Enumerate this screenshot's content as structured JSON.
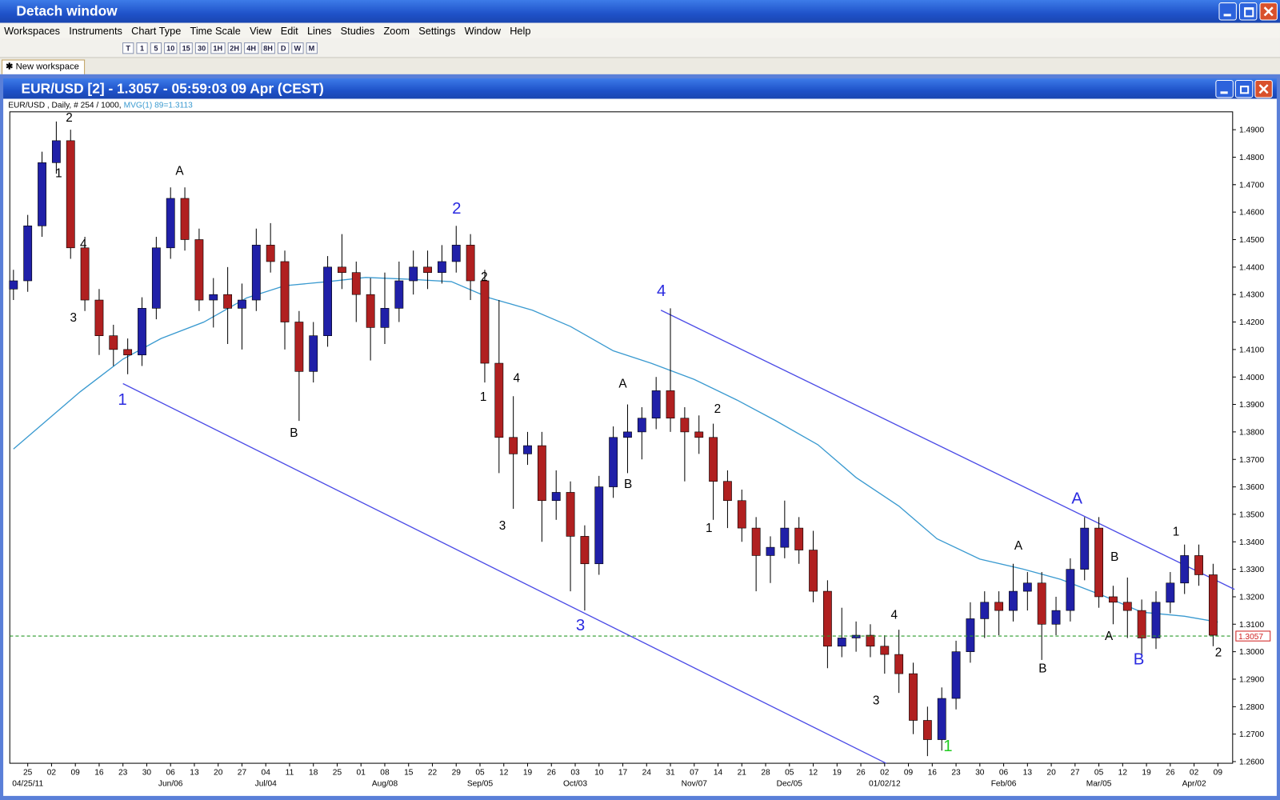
{
  "window": {
    "title": "Detach window"
  },
  "menu": [
    "Workspaces",
    "Instruments",
    "Chart Type",
    "Time Scale",
    "View",
    "Edit",
    "Lines",
    "Studies",
    "Zoom",
    "Settings",
    "Window",
    "Help"
  ],
  "toolbar": [
    "T",
    "1",
    "5",
    "10",
    "15",
    "30",
    "1H",
    "2H",
    "4H",
    "8H",
    "D",
    "W",
    "M"
  ],
  "tab": "New workspace",
  "chart_window": {
    "title": "EUR/USD [2] - 1.3057 - 05:59:03  09 Apr (CEST)"
  },
  "chart_data": {
    "type": "candlestick",
    "info": "EUR/USD , Daily, # 254 / 1000,",
    "up_color": "#2020a8",
    "down_color": "#b02020",
    "xlim": [
      -3.77,
      253.1
    ],
    "ylim": [
      1.2594,
      1.4965
    ],
    "yticks": [
      {
        "value": 1.26,
        "label": "1.2600"
      },
      {
        "value": 1.27,
        "label": "1.2700"
      },
      {
        "value": 1.28,
        "label": "1.2800"
      },
      {
        "value": 1.29,
        "label": "1.2900"
      },
      {
        "value": 1.3,
        "label": "1.3000"
      },
      {
        "value": 1.31,
        "label": "1.3100"
      },
      {
        "value": 1.32,
        "label": "1.3200"
      },
      {
        "value": 1.33,
        "label": "1.3300"
      },
      {
        "value": 1.34,
        "label": "1.3400"
      },
      {
        "value": 1.35,
        "label": "1.3500"
      },
      {
        "value": 1.36,
        "label": "1.3600"
      },
      {
        "value": 1.37,
        "label": "1.3700"
      },
      {
        "value": 1.38,
        "label": "1.3800"
      },
      {
        "value": 1.39,
        "label": "1.3900"
      },
      {
        "value": 1.4,
        "label": "1.4000"
      },
      {
        "value": 1.41,
        "label": "1.4100"
      },
      {
        "value": 1.42,
        "label": "1.4200"
      },
      {
        "value": 1.43,
        "label": "1.4300"
      },
      {
        "value": 1.44,
        "label": "1.4400"
      },
      {
        "value": 1.45,
        "label": "1.4500"
      },
      {
        "value": 1.46,
        "label": "1.4600"
      },
      {
        "value": 1.47,
        "label": "1.4700"
      },
      {
        "value": 1.48,
        "label": "1.4800"
      },
      {
        "value": 1.49,
        "label": "1.4900"
      }
    ],
    "xticks": [
      {
        "value": 0,
        "label": "25"
      },
      {
        "value": 5,
        "label": "02"
      },
      {
        "value": 10,
        "label": "09"
      },
      {
        "value": 15,
        "label": "16"
      },
      {
        "value": 20,
        "label": "23"
      },
      {
        "value": 25,
        "label": "30"
      },
      {
        "value": 30,
        "label": "06"
      },
      {
        "value": 35,
        "label": "13"
      },
      {
        "value": 40,
        "label": "20"
      },
      {
        "value": 45,
        "label": "27"
      },
      {
        "value": 50,
        "label": "04"
      },
      {
        "value": 55,
        "label": "11"
      },
      {
        "value": 60,
        "label": "18"
      },
      {
        "value": 65,
        "label": "25"
      },
      {
        "value": 70,
        "label": "01"
      },
      {
        "value": 75,
        "label": "08"
      },
      {
        "value": 80,
        "label": "15"
      },
      {
        "value": 85,
        "label": "22"
      },
      {
        "value": 90,
        "label": "29"
      },
      {
        "value": 95,
        "label": "05"
      },
      {
        "value": 100,
        "label": "12"
      },
      {
        "value": 105,
        "label": "19"
      },
      {
        "value": 110,
        "label": "26"
      },
      {
        "value": 115,
        "label": "03"
      },
      {
        "value": 120,
        "label": "10"
      },
      {
        "value": 125,
        "label": "17"
      },
      {
        "value": 130,
        "label": "24"
      },
      {
        "value": 135,
        "label": "31"
      },
      {
        "value": 140,
        "label": "07"
      },
      {
        "value": 145,
        "label": "14"
      },
      {
        "value": 150,
        "label": "21"
      },
      {
        "value": 155,
        "label": "28"
      },
      {
        "value": 160,
        "label": "05"
      },
      {
        "value": 165,
        "label": "12"
      },
      {
        "value": 170,
        "label": "19"
      },
      {
        "value": 175,
        "label": "26"
      },
      {
        "value": 180,
        "label": "02"
      },
      {
        "value": 185,
        "label": "09"
      },
      {
        "value": 190,
        "label": "16"
      },
      {
        "value": 195,
        "label": "23"
      },
      {
        "value": 200,
        "label": "30"
      },
      {
        "value": 205,
        "label": "06"
      },
      {
        "value": 210,
        "label": "13"
      },
      {
        "value": 215,
        "label": "20"
      },
      {
        "value": 220,
        "label": "27"
      },
      {
        "value": 225,
        "label": "05"
      },
      {
        "value": 230,
        "label": "12"
      },
      {
        "value": 235,
        "label": "19"
      },
      {
        "value": 240,
        "label": "26"
      },
      {
        "value": 245,
        "label": "02"
      },
      {
        "value": 250,
        "label": "09"
      }
    ],
    "xticks_major": [
      {
        "value": 0,
        "label": "04/25/11"
      },
      {
        "value": 30,
        "label": "Jun/06"
      },
      {
        "value": 50,
        "label": "Jul/04"
      },
      {
        "value": 75,
        "label": "Aug/08"
      },
      {
        "value": 95,
        "label": "Sep/05"
      },
      {
        "value": 115,
        "label": "Oct/03"
      },
      {
        "value": 140,
        "label": "Nov/07"
      },
      {
        "value": 160,
        "label": "Dec/05"
      },
      {
        "value": 180,
        "label": "01/02/12"
      },
      {
        "value": 205,
        "label": "Feb/06"
      },
      {
        "value": 225,
        "label": "Mar/05"
      },
      {
        "value": 245,
        "label": "Apr/02"
      }
    ],
    "x": [
      -3,
      0,
      3,
      6,
      9,
      12,
      15,
      18,
      21,
      24,
      27,
      30,
      33,
      36,
      39,
      42,
      45,
      48,
      51,
      54,
      57,
      60,
      63,
      66,
      69,
      72,
      75,
      78,
      81,
      84,
      87,
      90,
      93,
      96,
      99,
      102,
      105,
      108,
      111,
      114,
      117,
      120,
      123,
      126,
      129,
      132,
      135,
      138,
      141,
      144,
      147,
      150,
      153,
      156,
      159,
      162,
      165,
      168,
      171,
      174,
      177,
      180,
      183,
      186,
      189,
      192,
      195,
      198,
      201,
      204,
      207,
      210,
      213,
      216,
      219,
      222,
      225,
      228,
      231,
      234,
      237,
      240,
      243,
      246,
      249
    ],
    "open": [
      1.432,
      1.435,
      1.455,
      1.478,
      1.486,
      1.447,
      1.428,
      1.415,
      1.41,
      1.408,
      1.425,
      1.447,
      1.465,
      1.45,
      1.428,
      1.43,
      1.425,
      1.428,
      1.448,
      1.442,
      1.42,
      1.402,
      1.415,
      1.44,
      1.438,
      1.43,
      1.418,
      1.425,
      1.435,
      1.44,
      1.438,
      1.442,
      1.448,
      1.435,
      1.405,
      1.378,
      1.372,
      1.375,
      1.355,
      1.358,
      1.342,
      1.332,
      1.36,
      1.378,
      1.38,
      1.385,
      1.395,
      1.385,
      1.38,
      1.378,
      1.362,
      1.355,
      1.345,
      1.335,
      1.338,
      1.345,
      1.337,
      1.322,
      1.302,
      1.305,
      1.306,
      1.302,
      1.299,
      1.292,
      1.275,
      1.268,
      1.283,
      1.3,
      1.312,
      1.318,
      1.315,
      1.322,
      1.325,
      1.31,
      1.315,
      1.33,
      1.345,
      1.32,
      1.318,
      1.315,
      1.305,
      1.318,
      1.325,
      1.335,
      1.328
    ],
    "high": [
      1.439,
      1.459,
      1.482,
      1.493,
      1.49,
      1.451,
      1.432,
      1.419,
      1.414,
      1.429,
      1.451,
      1.469,
      1.469,
      1.454,
      1.436,
      1.44,
      1.434,
      1.454,
      1.456,
      1.446,
      1.424,
      1.42,
      1.444,
      1.452,
      1.442,
      1.436,
      1.438,
      1.442,
      1.446,
      1.446,
      1.448,
      1.455,
      1.452,
      1.439,
      1.428,
      1.393,
      1.38,
      1.38,
      1.366,
      1.362,
      1.346,
      1.364,
      1.382,
      1.39,
      1.389,
      1.4,
      1.425,
      1.389,
      1.386,
      1.383,
      1.366,
      1.359,
      1.349,
      1.342,
      1.355,
      1.349,
      1.344,
      1.326,
      1.316,
      1.311,
      1.31,
      1.306,
      1.308,
      1.296,
      1.28,
      1.287,
      1.304,
      1.318,
      1.322,
      1.322,
      1.332,
      1.329,
      1.329,
      1.32,
      1.334,
      1.349,
      1.349,
      1.324,
      1.327,
      1.319,
      1.322,
      1.329,
      1.339,
      1.339,
      1.332
    ],
    "low": [
      1.428,
      1.431,
      1.451,
      1.474,
      1.443,
      1.424,
      1.408,
      1.404,
      1.401,
      1.404,
      1.421,
      1.443,
      1.446,
      1.424,
      1.418,
      1.412,
      1.41,
      1.424,
      1.438,
      1.41,
      1.384,
      1.398,
      1.411,
      1.432,
      1.42,
      1.406,
      1.412,
      1.42,
      1.43,
      1.432,
      1.434,
      1.438,
      1.428,
      1.398,
      1.365,
      1.352,
      1.368,
      1.34,
      1.348,
      1.322,
      1.315,
      1.328,
      1.356,
      1.365,
      1.37,
      1.381,
      1.38,
      1.362,
      1.372,
      1.348,
      1.345,
      1.34,
      1.322,
      1.325,
      1.334,
      1.332,
      1.318,
      1.294,
      1.298,
      1.3,
      1.298,
      1.292,
      1.285,
      1.27,
      1.262,
      1.264,
      1.279,
      1.296,
      1.305,
      1.306,
      1.311,
      1.315,
      1.297,
      1.306,
      1.311,
      1.326,
      1.316,
      1.31,
      1.305,
      1.298,
      1.301,
      1.314,
      1.321,
      1.324,
      1.302
    ],
    "close": [
      1.435,
      1.455,
      1.478,
      1.486,
      1.447,
      1.428,
      1.415,
      1.41,
      1.408,
      1.425,
      1.447,
      1.465,
      1.45,
      1.428,
      1.43,
      1.425,
      1.428,
      1.448,
      1.442,
      1.42,
      1.402,
      1.415,
      1.44,
      1.438,
      1.43,
      1.418,
      1.425,
      1.435,
      1.44,
      1.438,
      1.442,
      1.448,
      1.435,
      1.405,
      1.378,
      1.372,
      1.375,
      1.355,
      1.358,
      1.342,
      1.332,
      1.36,
      1.378,
      1.38,
      1.385,
      1.395,
      1.385,
      1.38,
      1.378,
      1.362,
      1.355,
      1.345,
      1.335,
      1.338,
      1.345,
      1.337,
      1.322,
      1.302,
      1.305,
      1.306,
      1.302,
      1.299,
      1.292,
      1.275,
      1.268,
      1.283,
      1.3,
      1.312,
      1.318,
      1.315,
      1.322,
      1.325,
      1.31,
      1.315,
      1.33,
      1.345,
      1.32,
      1.318,
      1.315,
      1.305,
      1.318,
      1.325,
      1.335,
      1.328,
      1.306
    ],
    "ma": {
      "name": "MVG(1) 89=1.3113",
      "color": "#3a9ad0",
      "x": [
        -3,
        11,
        20,
        28,
        37,
        46,
        54,
        63,
        71,
        80,
        89,
        97,
        106,
        114,
        123,
        131,
        140,
        149,
        157,
        166,
        174,
        183,
        191,
        200,
        209,
        217,
        226,
        234,
        243,
        250
      ],
      "values": [
        1.3738,
        1.3946,
        1.4065,
        1.414,
        1.42,
        1.4288,
        1.4332,
        1.4347,
        1.4362,
        1.4356,
        1.4347,
        1.4288,
        1.4243,
        1.4184,
        1.4095,
        1.405,
        1.3991,
        1.3916,
        1.3842,
        1.3753,
        1.3634,
        1.353,
        1.3411,
        1.3337,
        1.3301,
        1.3263,
        1.3203,
        1.3144,
        1.3129,
        1.3108
      ]
    },
    "trendlines": [
      {
        "color": "#4b4be6",
        "x": [
          20,
          180.3
        ],
        "y": [
          1.3976,
          1.2594
        ]
      },
      {
        "color": "#4b4be6",
        "x": [
          133,
          253.5
        ],
        "y": [
          1.4243,
          1.3227
        ]
      }
    ],
    "price_line": {
      "value": 1.3057,
      "label": "1.3057",
      "color": "#2a9a2a"
    },
    "annotations": [
      {
        "text": "2",
        "x": 8.7,
        "y": 1.4945,
        "color": "#000000"
      },
      {
        "text": "1",
        "x": 6.5,
        "y": 1.4742,
        "color": "#000000"
      },
      {
        "text": "4",
        "x": 11.7,
        "y": 1.4484,
        "color": "#000000"
      },
      {
        "text": "3",
        "x": 9.6,
        "y": 1.4216,
        "color": "#000000"
      },
      {
        "text": "1",
        "x": 19.9,
        "y": 1.3919,
        "color": "#2a2ae0"
      },
      {
        "text": "A",
        "x": 31.9,
        "y": 1.4751,
        "color": "#000000"
      },
      {
        "text": "B",
        "x": 55.9,
        "y": 1.3797,
        "color": "#000000"
      },
      {
        "text": "2",
        "x": 90.1,
        "y": 1.4615,
        "color": "#2a2ae0"
      },
      {
        "text": "2",
        "x": 95.9,
        "y": 1.4365,
        "color": "#000000"
      },
      {
        "text": "4",
        "x": 102.7,
        "y": 1.3997,
        "color": "#000000"
      },
      {
        "text": "1",
        "x": 95.7,
        "y": 1.3928,
        "color": "#000000"
      },
      {
        "text": "3",
        "x": 99.7,
        "y": 1.3459,
        "color": "#000000"
      },
      {
        "text": "3",
        "x": 116.1,
        "y": 1.3099,
        "color": "#2a2ae0"
      },
      {
        "text": "A",
        "x": 125.0,
        "y": 1.3976,
        "color": "#000000"
      },
      {
        "text": "B",
        "x": 126.1,
        "y": 1.361,
        "color": "#000000"
      },
      {
        "text": "4",
        "x": 133.1,
        "y": 1.4315,
        "color": "#2a2ae0"
      },
      {
        "text": "2",
        "x": 144.9,
        "y": 1.3884,
        "color": "#000000"
      },
      {
        "text": "1",
        "x": 143.1,
        "y": 1.345,
        "color": "#000000"
      },
      {
        "text": "4",
        "x": 182.0,
        "y": 1.3135,
        "color": "#000000"
      },
      {
        "text": "3",
        "x": 178.2,
        "y": 1.2823,
        "color": "#000000"
      },
      {
        "text": "1",
        "x": 193.3,
        "y": 1.2659,
        "color": "#22cc22"
      },
      {
        "text": "A",
        "x": 208.1,
        "y": 1.3387,
        "color": "#000000"
      },
      {
        "text": "B",
        "x": 213.2,
        "y": 1.2939,
        "color": "#000000"
      },
      {
        "text": "A",
        "x": 220.4,
        "y": 1.356,
        "color": "#2a2ae0"
      },
      {
        "text": "B",
        "x": 228.3,
        "y": 1.3346,
        "color": "#000000"
      },
      {
        "text": "A",
        "x": 227.1,
        "y": 1.3058,
        "color": "#000000"
      },
      {
        "text": "B",
        "x": 233.4,
        "y": 1.2974,
        "color": "#2a2ae0"
      },
      {
        "text": "1",
        "x": 241.2,
        "y": 1.3438,
        "color": "#000000"
      },
      {
        "text": "2",
        "x": 250.1,
        "y": 1.2998,
        "color": "#000000"
      }
    ]
  }
}
